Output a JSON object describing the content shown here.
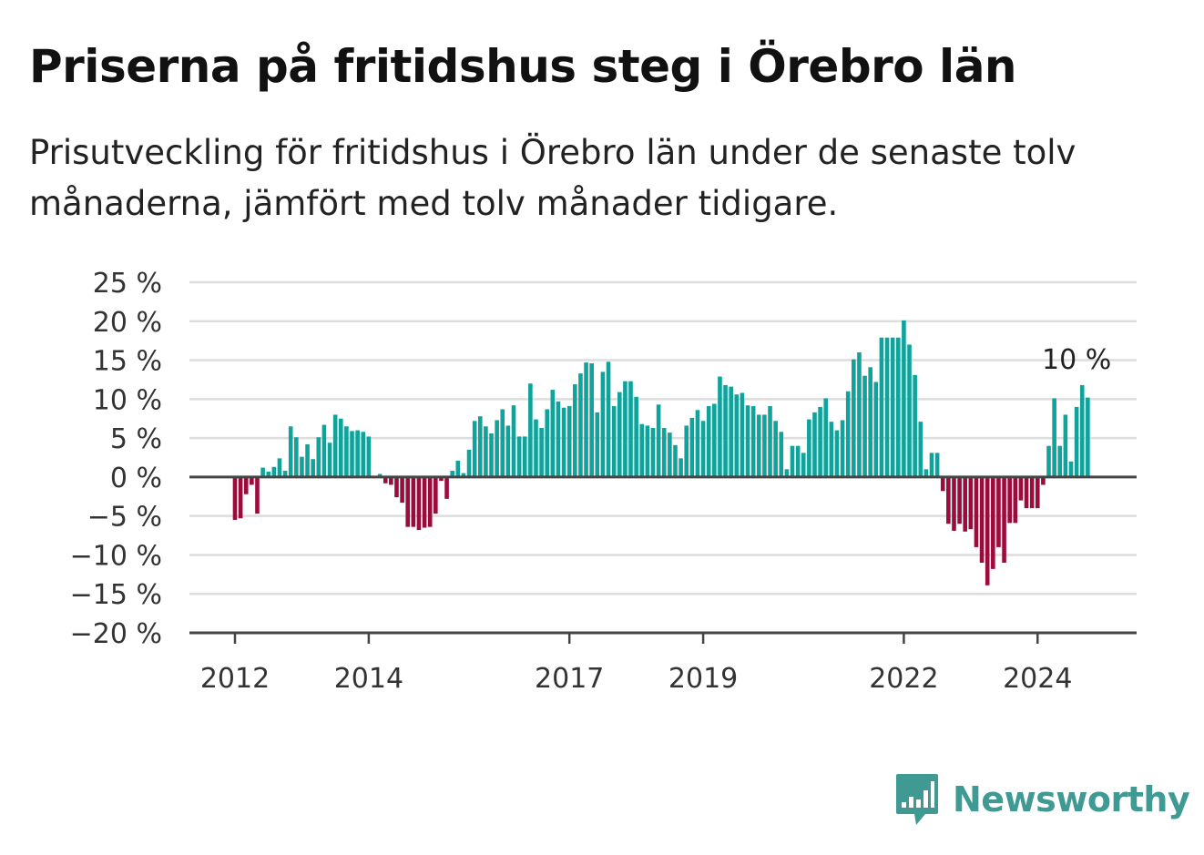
{
  "title": "Priserna på fritidshus steg i Örebro län",
  "subtitle": "Prisutveckling för fritidshus i Örebro län under de senaste tolv månaderna, jämfört med tolv månader tidigare.",
  "brand": "Newsworthy",
  "colors": {
    "positive": "#0fa39b",
    "negative": "#9b0b3b",
    "brand": "#3e9a93",
    "grid": "#dddddd",
    "axis": "#444444"
  },
  "chart_data": {
    "type": "bar",
    "ylim": [
      -20,
      25
    ],
    "yticks": [
      25,
      20,
      15,
      10,
      5,
      0,
      -5,
      -10,
      -15,
      -20
    ],
    "ytick_labels": [
      "25 %",
      "20 %",
      "15 %",
      "10 %",
      "5 %",
      "0 %",
      "−5 %",
      "−10 %",
      "−15 %",
      "−20 %"
    ],
    "xticks": [
      {
        "label": "2012",
        "index": 0
      },
      {
        "label": "2014",
        "index": 24
      },
      {
        "label": "2017",
        "index": 60
      },
      {
        "label": "2019",
        "index": 84
      },
      {
        "label": "2022",
        "index": 120
      },
      {
        "label": "2024",
        "index": 144
      }
    ],
    "annotation": "10 %",
    "grid": true,
    "values": [
      -5.5,
      -5.3,
      -2.2,
      -1,
      -4.7,
      1.2,
      0.7,
      1.3,
      2.4,
      0.8,
      6.5,
      5.1,
      2.6,
      4.2,
      2.3,
      5.1,
      6.7,
      4.4,
      8,
      7.5,
      6.5,
      5.9,
      6,
      5.8,
      5.2,
      0,
      0.4,
      -0.8,
      -1,
      -2.6,
      -3.3,
      -6.4,
      -6.4,
      -6.8,
      -6.5,
      -6.4,
      -4.7,
      -0.5,
      -2.8,
      0.8,
      2.1,
      0.5,
      3.5,
      7.2,
      7.8,
      6.5,
      5.6,
      7.3,
      8.7,
      6.6,
      9.2,
      5.2,
      5.2,
      12,
      7.4,
      6.3,
      8.7,
      11.2,
      9.7,
      8.9,
      9.1,
      11.9,
      13.3,
      14.7,
      14.6,
      8.3,
      13.5,
      14.8,
      9.1,
      10.9,
      12.3,
      12.3,
      10.3,
      6.8,
      6.6,
      6.3,
      9.3,
      6.3,
      5.7,
      4.1,
      2.4,
      6.6,
      7.6,
      8.6,
      7.2,
      9.1,
      9.4,
      12.9,
      11.8,
      11.6,
      10.6,
      10.8,
      9.2,
      9.1,
      8,
      8,
      9.1,
      7.2,
      5.8,
      1,
      4,
      4,
      3.1,
      7.4,
      8.3,
      9,
      10.1,
      7.1,
      6,
      7.3,
      11,
      15.1,
      16,
      13,
      14.1,
      12.2,
      17.9,
      17.9,
      17.9,
      17.9,
      20.1,
      17,
      13.1,
      7.1,
      1,
      3.1,
      3.1,
      -1.8,
      -6,
      -6.9,
      -6,
      -7,
      -6.7,
      -9,
      -11,
      -13.9,
      -11.8,
      -9,
      -11,
      -5.9,
      -5.9,
      -3,
      -4,
      -4,
      -4,
      -1,
      4,
      10.1,
      4,
      8,
      2,
      9,
      11.8,
      10.2
    ]
  }
}
